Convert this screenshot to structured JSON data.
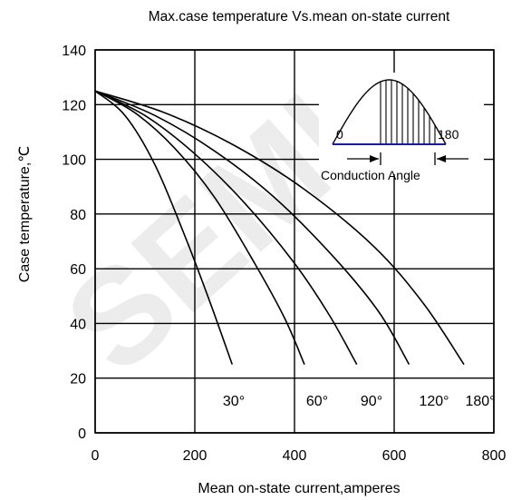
{
  "chart_data": {
    "type": "line",
    "title": "Max.case temperature Vs.mean on-state current",
    "xlabel": "Mean on-state current,amperes",
    "ylabel": "Case temperature,℃",
    "xlim": [
      0,
      800
    ],
    "ylim": [
      0,
      140
    ],
    "xticks": [
      "0",
      "200",
      "400",
      "600",
      "800"
    ],
    "yticks": [
      "0",
      "20",
      "40",
      "60",
      "80",
      "100",
      "120",
      "140"
    ],
    "grid": true,
    "series": [
      {
        "name": "30°",
        "x": [
          0,
          60,
          120,
          180,
          230,
          275
        ],
        "y": [
          125,
          116,
          98,
          72,
          48,
          25
        ]
      },
      {
        "name": "60°",
        "x": [
          0,
          80,
          160,
          240,
          320,
          380,
          420
        ],
        "y": [
          125,
          117,
          104,
          86,
          62,
          42,
          25
        ]
      },
      {
        "name": "90°",
        "x": [
          0,
          100,
          200,
          300,
          400,
          470,
          525
        ],
        "y": [
          125,
          116,
          102,
          84,
          62,
          43,
          25
        ]
      },
      {
        "name": "120°",
        "x": [
          0,
          120,
          240,
          360,
          480,
          570,
          630
        ],
        "y": [
          125,
          116,
          103,
          86,
          64,
          44,
          25
        ]
      },
      {
        "name": "180°",
        "x": [
          0,
          140,
          280,
          420,
          560,
          660,
          740
        ],
        "y": [
          125,
          117,
          105,
          89,
          68,
          47,
          25
        ]
      }
    ],
    "curve_labels": [
      "30°",
      "60°",
      "90°",
      "120°",
      "180°"
    ],
    "inset": {
      "left_label": "0",
      "right_label": "180",
      "caption": "Conduction Angle",
      "baseline_color": "#1a1aa6"
    },
    "watermark": "SEMI"
  }
}
